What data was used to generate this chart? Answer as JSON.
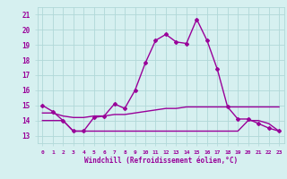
{
  "xlabel": "Windchill (Refroidissement éolien,°C)",
  "x_values": [
    0,
    1,
    2,
    3,
    4,
    5,
    6,
    7,
    8,
    9,
    10,
    11,
    12,
    13,
    14,
    15,
    16,
    17,
    18,
    19,
    20,
    21,
    22,
    23
  ],
  "line1": [
    15.0,
    14.6,
    14.0,
    13.3,
    13.3,
    14.2,
    14.3,
    15.1,
    14.8,
    16.0,
    17.8,
    19.3,
    19.7,
    19.2,
    19.1,
    20.7,
    19.3,
    17.4,
    14.9,
    14.1,
    14.1,
    13.8,
    13.5,
    13.3
  ],
  "line2": [
    14.0,
    14.0,
    14.0,
    13.3,
    13.3,
    13.3,
    13.3,
    13.3,
    13.3,
    13.3,
    13.3,
    13.3,
    13.3,
    13.3,
    13.3,
    13.3,
    13.3,
    13.3,
    13.3,
    13.3,
    14.0,
    14.0,
    13.8,
    13.3
  ],
  "line3": [
    14.5,
    14.5,
    14.3,
    14.2,
    14.2,
    14.3,
    14.3,
    14.4,
    14.4,
    14.5,
    14.6,
    14.7,
    14.8,
    14.8,
    14.9,
    14.9,
    14.9,
    14.9,
    14.9,
    14.9,
    14.9,
    14.9,
    14.9,
    14.9
  ],
  "line_color": "#990099",
  "bg_color": "#d6f0f0",
  "grid_color": "#b0d8d8",
  "text_color": "#990099",
  "ylim": [
    12.5,
    21.5
  ],
  "yticks": [
    13,
    14,
    15,
    16,
    17,
    18,
    19,
    20,
    21
  ],
  "marker": "D",
  "markersize": 2,
  "linewidth": 1.0
}
